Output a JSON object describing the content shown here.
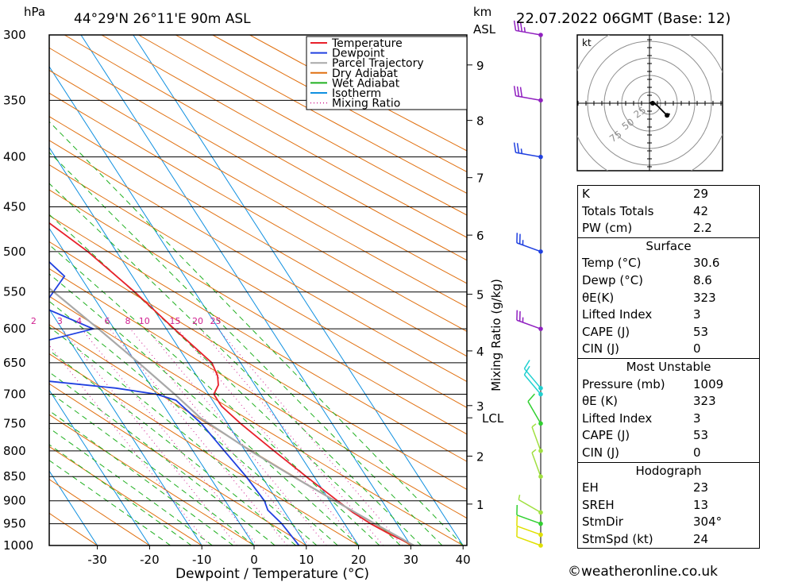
{
  "header": {
    "pressure_unit": "hPa",
    "location": "44°29'N  26°11'E  90m  ASL",
    "height_unit": "km",
    "height_unit2": "ASL",
    "datetime": "22.07.2022  06GMT  (Base: 12)"
  },
  "chart_data": {
    "type": "line",
    "subtype": "skew-T log-p sounding",
    "xlabel": "Dewpoint / Temperature (°C)",
    "mixing_axis_label": "Mixing Ratio (g/kg)",
    "pressure_ticks": [
      300,
      350,
      400,
      450,
      500,
      550,
      600,
      650,
      700,
      750,
      800,
      850,
      900,
      950,
      1000
    ],
    "temp_ticks": [
      -30,
      -20,
      -10,
      0,
      10,
      20,
      30,
      40
    ],
    "xlim": [
      -40,
      40
    ],
    "plim": [
      1000,
      300
    ],
    "height_ticks": [
      {
        "label": "9",
        "p": 322
      },
      {
        "label": "8",
        "p": 367
      },
      {
        "label": "7",
        "p": 420
      },
      {
        "label": "6",
        "p": 481
      },
      {
        "label": "5",
        "p": 553
      },
      {
        "label": "4",
        "p": 632
      },
      {
        "label": "3",
        "p": 719
      },
      {
        "label": "2",
        "p": 810
      },
      {
        "label": "1",
        "p": 907
      }
    ],
    "lcl": {
      "label": "LCL",
      "p": 740
    },
    "mixing_ratio_labels": [
      "2",
      "3",
      "4",
      "6",
      "8",
      "10",
      "15",
      "20",
      "25"
    ],
    "mixing_ratio_values": [
      2,
      3,
      4,
      6,
      8,
      10,
      15,
      20,
      25
    ],
    "legend": [
      {
        "name": "Temperature",
        "color": "#e8202a",
        "style": "solid"
      },
      {
        "name": "Dewpoint",
        "color": "#2040e0",
        "style": "solid"
      },
      {
        "name": "Parcel Trajectory",
        "color": "#a8a8a8",
        "style": "solid"
      },
      {
        "name": "Dry Adiabat",
        "color": "#e07010",
        "style": "solid"
      },
      {
        "name": "Wet Adiabat",
        "color": "#20b020",
        "style": "solid"
      },
      {
        "name": "Isotherm",
        "color": "#1090e0",
        "style": "solid"
      },
      {
        "name": "Mixing Ratio",
        "color": "#d02090",
        "style": "dotted"
      }
    ],
    "series": [
      {
        "name": "Temperature",
        "color": "#e8202a",
        "points": [
          [
            1000,
            30.6
          ],
          [
            975,
            27.5
          ],
          [
            950,
            25
          ],
          [
            925,
            23
          ],
          [
            900,
            21.5
          ],
          [
            850,
            18.5
          ],
          [
            800,
            15.5
          ],
          [
            750,
            12.5
          ],
          [
            720,
            11
          ],
          [
            700,
            11
          ],
          [
            685,
            13
          ],
          [
            670,
            14
          ],
          [
            650,
            14.5
          ],
          [
            600,
            11.5
          ],
          [
            550,
            8.5
          ],
          [
            500,
            4.5
          ],
          [
            450,
            -1.5
          ],
          [
            400,
            -7.5
          ],
          [
            370,
            -12.5
          ],
          [
            350,
            -16.5
          ],
          [
            300,
            -25.5
          ]
        ]
      },
      {
        "name": "Dewpoint",
        "color": "#2040e0",
        "points": [
          [
            1000,
            8.6
          ],
          [
            950,
            8
          ],
          [
            920,
            7
          ],
          [
            900,
            7.5
          ],
          [
            850,
            7
          ],
          [
            800,
            6
          ],
          [
            750,
            5
          ],
          [
            710,
            3
          ],
          [
            700,
            0
          ],
          [
            690,
            -7
          ],
          [
            667,
            -32
          ],
          [
            655,
            -28
          ],
          [
            643,
            -30
          ],
          [
            600,
            -4
          ],
          [
            570,
            -11
          ],
          [
            530,
            -3
          ],
          [
            500,
            -5
          ],
          [
            450,
            -12
          ],
          [
            400,
            -21
          ],
          [
            350,
            -30
          ],
          [
            305,
            -38
          ],
          [
            300,
            -41
          ]
        ]
      },
      {
        "name": "Parcel Trajectory",
        "color": "#a8a8a8",
        "points": [
          [
            1000,
            30.6
          ],
          [
            950,
            25.8
          ],
          [
            900,
            21
          ],
          [
            850,
            16
          ],
          [
            800,
            11
          ],
          [
            740,
            5.5
          ],
          [
            700,
            3.5
          ],
          [
            650,
            0.5
          ],
          [
            600,
            -3
          ],
          [
            550,
            -7
          ],
          [
            500,
            -11.5
          ],
          [
            450,
            -17
          ],
          [
            400,
            -23.5
          ],
          [
            350,
            -31
          ],
          [
            300,
            -40
          ]
        ]
      }
    ],
    "wind_barbs": [
      {
        "p": 1000,
        "dir": 290,
        "kt": 12,
        "color": "#e0e000"
      },
      {
        "p": 975,
        "dir": 290,
        "kt": 10,
        "color": "#e0e000"
      },
      {
        "p": 950,
        "dir": 290,
        "kt": 10,
        "color": "#30d030"
      },
      {
        "p": 925,
        "dir": 300,
        "kt": 5,
        "color": "#a0e040"
      },
      {
        "p": 850,
        "dir": 340,
        "kt": 5,
        "color": "#a0e040"
      },
      {
        "p": 800,
        "dir": 340,
        "kt": 5,
        "color": "#a0e040"
      },
      {
        "p": 750,
        "dir": 330,
        "kt": 10,
        "color": "#30d030"
      },
      {
        "p": 700,
        "dir": 320,
        "kt": 10,
        "color": "#20d0d0"
      },
      {
        "p": 690,
        "dir": 320,
        "kt": 10,
        "color": "#20d0d0"
      },
      {
        "p": 600,
        "dir": 290,
        "kt": 25,
        "color": "#9020c0"
      },
      {
        "p": 500,
        "dir": 290,
        "kt": 25,
        "color": "#2040e0"
      },
      {
        "p": 400,
        "dir": 280,
        "kt": 25,
        "color": "#2040e0"
      },
      {
        "p": 350,
        "dir": 280,
        "kt": 30,
        "color": "#9020c0"
      },
      {
        "p": 300,
        "dir": 280,
        "kt": 35,
        "color": "#9020c0"
      }
    ],
    "hodograph": {
      "unit": "kt",
      "rings": [
        25,
        50,
        75
      ],
      "ring_labels": [
        "25",
        "50",
        "75"
      ],
      "points_kt": [
        [
          0,
          0
        ],
        [
          2,
          1
        ],
        [
          6,
          -2
        ],
        [
          10,
          -6
        ],
        [
          12,
          -8
        ],
        [
          15,
          -8
        ],
        [
          13,
          -9
        ]
      ]
    }
  },
  "indices": {
    "rows": [
      {
        "k": "K",
        "v": "29"
      },
      {
        "k": "Totals Totals",
        "v": "42"
      },
      {
        "k": "PW (cm)",
        "v": "2.2"
      }
    ],
    "surface": {
      "title": "Surface",
      "rows": [
        {
          "k": "Temp (°C)",
          "v": "30.6"
        },
        {
          "k": "Dewp (°C)",
          "v": "8.6"
        },
        {
          "k": "θE(K)",
          "v": "323"
        },
        {
          "k": "Lifted Index",
          "v": "3"
        },
        {
          "k": "CAPE (J)",
          "v": "53"
        },
        {
          "k": "CIN (J)",
          "v": "0"
        }
      ]
    },
    "unstable": {
      "title": "Most Unstable",
      "rows": [
        {
          "k": "Pressure (mb)",
          "v": "1009"
        },
        {
          "k": "θE (K)",
          "v": "323"
        },
        {
          "k": "Lifted Index",
          "v": "3"
        },
        {
          "k": "CAPE (J)",
          "v": "53"
        },
        {
          "k": "CIN (J)",
          "v": "0"
        }
      ]
    },
    "hodo": {
      "title": "Hodograph",
      "rows": [
        {
          "k": "EH",
          "v": "23"
        },
        {
          "k": "SREH",
          "v": "13"
        },
        {
          "k": "StmDir",
          "v": "304°"
        },
        {
          "k": "StmSpd (kt)",
          "v": "24"
        }
      ]
    }
  },
  "footer": "©weatheronline.co.uk"
}
